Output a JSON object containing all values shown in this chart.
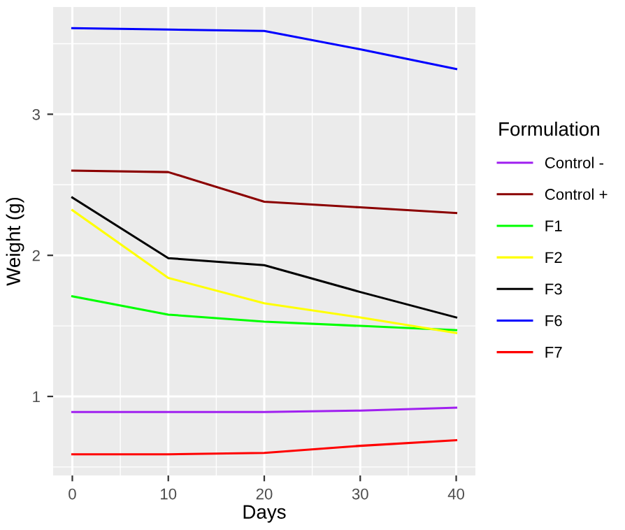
{
  "chart_data": {
    "type": "line",
    "xlabel": "Days",
    "ylabel": "Weight (g)",
    "legend_title": "Formulation",
    "legend": "right",
    "grid": true,
    "xlim": [
      -2,
      42
    ],
    "ylim": [
      0.44,
      3.76
    ],
    "xticks": [
      0,
      10,
      20,
      30,
      40
    ],
    "yticks": [
      1,
      2,
      3
    ],
    "x": [
      0,
      10,
      20,
      30,
      40
    ],
    "series": [
      {
        "name": "Control -",
        "color": "#a020f0",
        "values": [
          0.89,
          0.89,
          0.89,
          0.9,
          0.92
        ]
      },
      {
        "name": "Control +",
        "color": "#8b0000",
        "values": [
          2.6,
          2.59,
          2.38,
          2.34,
          2.3
        ]
      },
      {
        "name": "F1",
        "color": "#00ff00",
        "values": [
          1.71,
          1.58,
          1.53,
          1.5,
          1.47
        ]
      },
      {
        "name": "F2",
        "color": "#ffff00",
        "values": [
          2.32,
          1.84,
          1.66,
          1.56,
          1.45
        ]
      },
      {
        "name": "F3",
        "color": "#000000",
        "values": [
          2.41,
          1.98,
          1.93,
          1.74,
          1.56
        ]
      },
      {
        "name": "F6",
        "color": "#0000ff",
        "values": [
          3.61,
          3.6,
          3.59,
          3.46,
          3.32
        ]
      },
      {
        "name": "F7",
        "color": "#ff0000",
        "values": [
          0.59,
          0.59,
          0.6,
          0.65,
          0.69
        ]
      }
    ]
  }
}
